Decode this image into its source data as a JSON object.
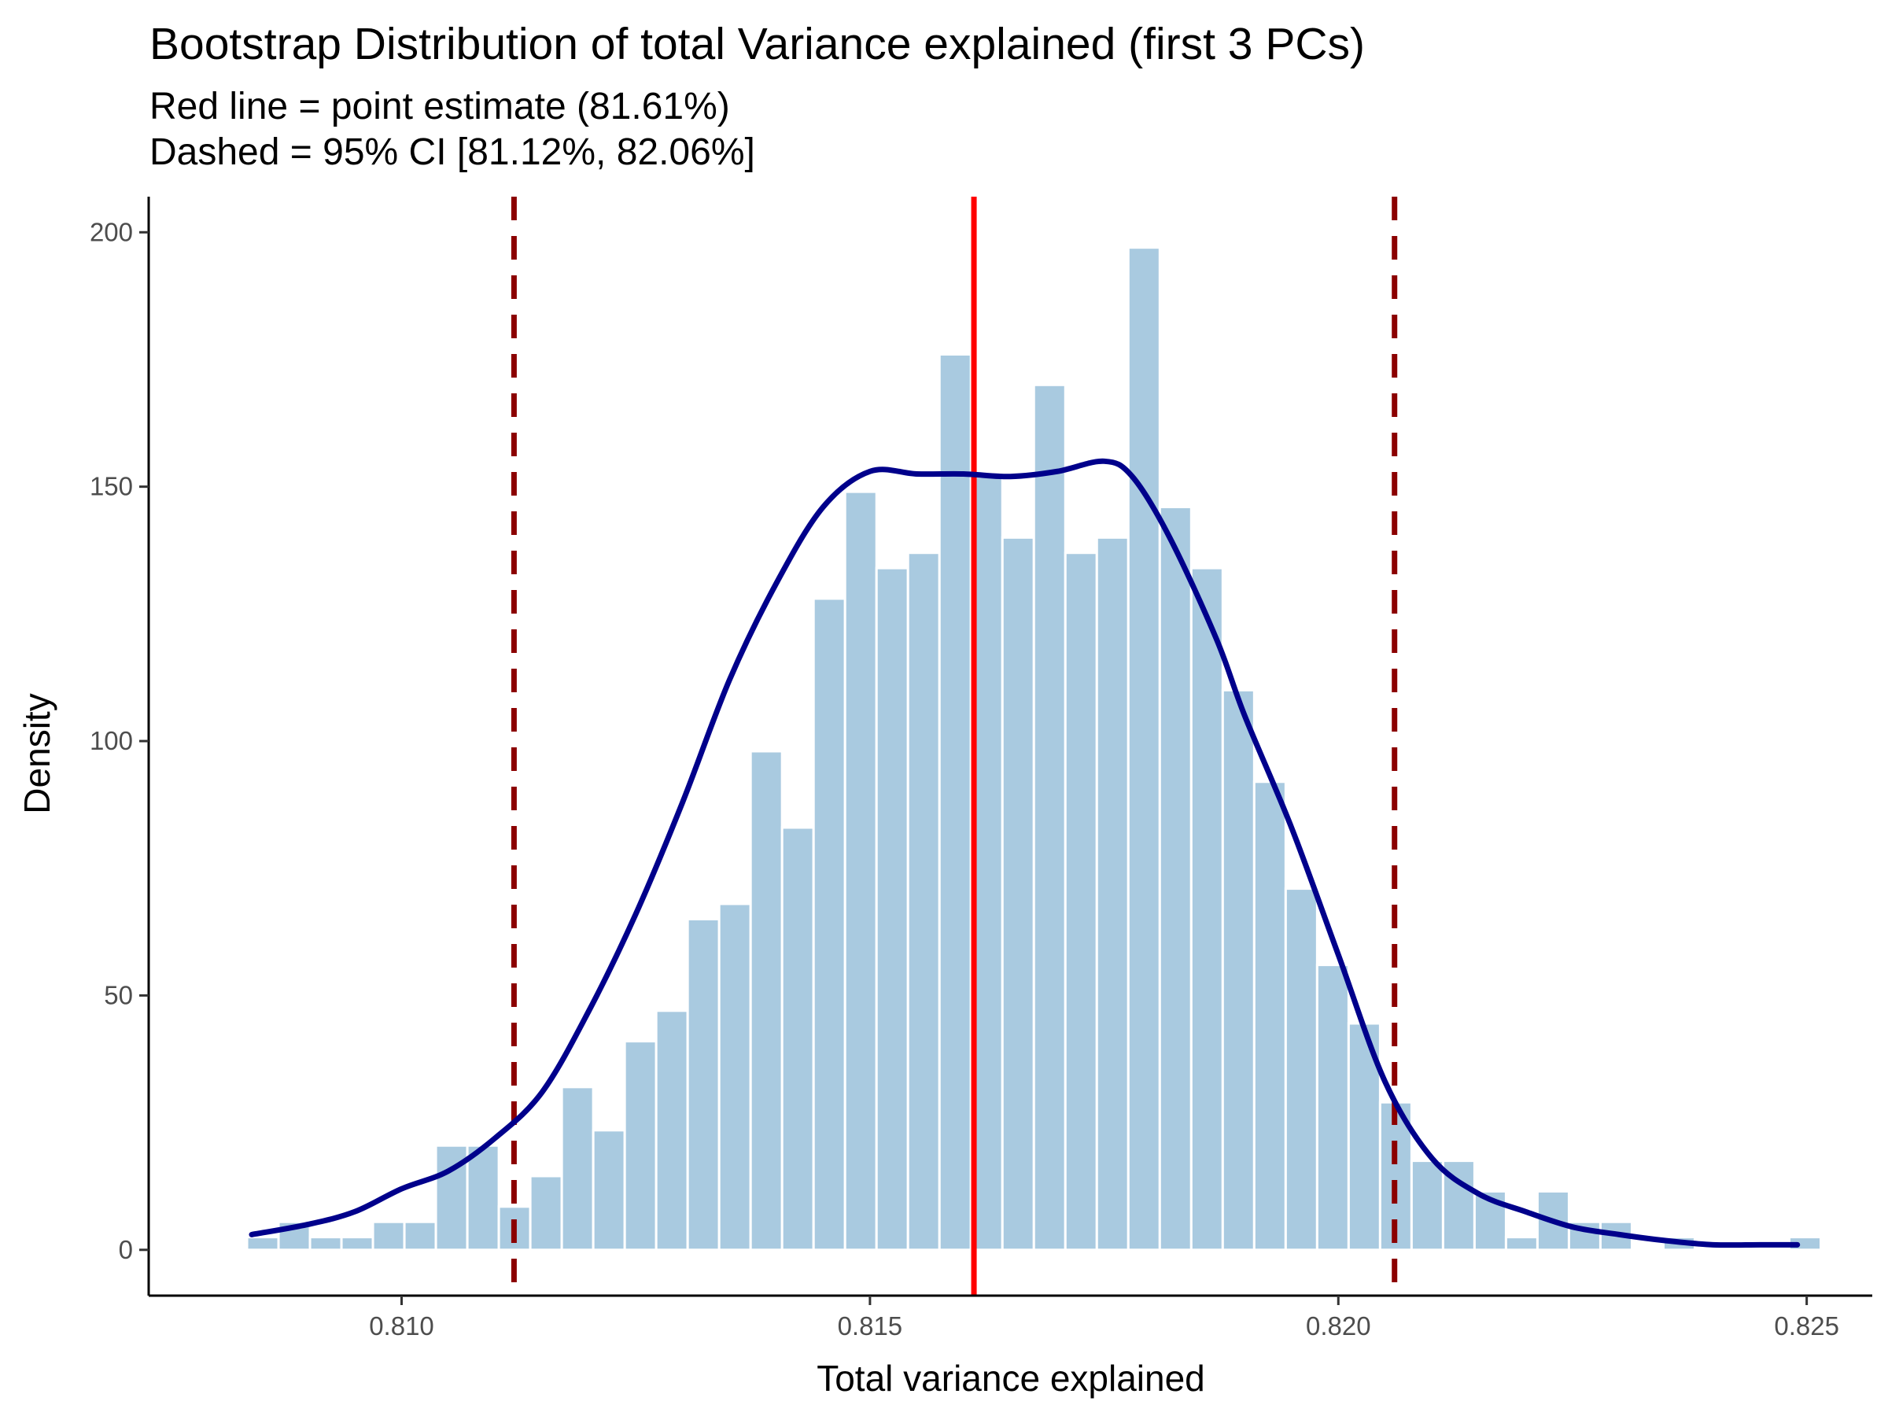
{
  "chart_data": {
    "type": "bar",
    "title": "Bootstrap Distribution of total Variance explained (first 3 PCs)",
    "subtitle_lines": [
      "Red line = point estimate (81.61%)",
      "Dashed = 95% CI [81.12%, 82.06%]"
    ],
    "xlabel": "Total variance explained",
    "ylabel": "Density",
    "xlim": [
      0.8073,
      0.8257
    ],
    "ylim": [
      -9,
      207
    ],
    "x_ticks": [
      0.81,
      0.815,
      0.82,
      0.825
    ],
    "x_tick_labels": [
      "0.810",
      "0.815",
      "0.820",
      "0.825"
    ],
    "y_ticks": [
      0,
      50,
      100,
      150,
      200
    ],
    "y_tick_labels": [
      "0",
      "50",
      "100",
      "150",
      "200"
    ],
    "grid": false,
    "legend": "none",
    "histogram": {
      "bin_start": 0.80835,
      "bin_width": 0.000336,
      "color": "#a9cae0",
      "values": [
        2.5,
        5.5,
        2.5,
        2.5,
        5.5,
        5.5,
        20.5,
        20.5,
        8.5,
        14.5,
        32,
        23.5,
        41,
        47,
        65,
        68,
        98,
        83,
        128,
        149,
        134,
        137,
        176,
        152,
        140,
        170,
        137,
        140,
        197,
        146,
        134,
        110,
        92,
        71,
        56,
        44.5,
        29,
        17.5,
        17.5,
        11.5,
        2.5,
        11.5,
        5.5,
        5.5,
        0,
        2.5,
        0,
        0,
        0,
        2.5
      ]
    },
    "density_curve": {
      "color": "#00008b",
      "x": [
        0.8084,
        0.809,
        0.8095,
        0.81,
        0.8105,
        0.811,
        0.8115,
        0.812,
        0.8125,
        0.813,
        0.8135,
        0.814,
        0.8145,
        0.815,
        0.8155,
        0.816,
        0.8165,
        0.817,
        0.8175,
        0.8178,
        0.8182,
        0.8187,
        0.819,
        0.8195,
        0.82,
        0.8205,
        0.821,
        0.8215,
        0.822,
        0.8225,
        0.823,
        0.8235,
        0.824,
        0.8245,
        0.8249
      ],
      "y": [
        3,
        5,
        7.5,
        12,
        15.5,
        22,
        31,
        47,
        66,
        88,
        112,
        131,
        146,
        153,
        152.5,
        152.5,
        152,
        153,
        155,
        152,
        140,
        120,
        105,
        83,
        58,
        33,
        18,
        11,
        7.5,
        4.5,
        3,
        1.8,
        1,
        1,
        1
      ]
    },
    "point_estimate": {
      "value": 0.81611,
      "color": "#ff0000"
    },
    "ci_95": {
      "lower": 0.8112,
      "upper": 0.8206,
      "color": "#8b0000"
    }
  }
}
